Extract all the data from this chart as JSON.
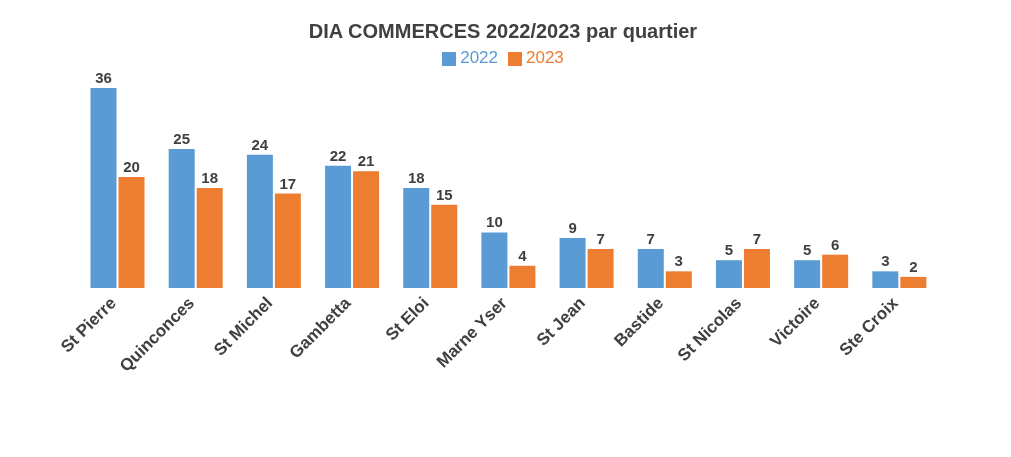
{
  "chart_data": {
    "type": "bar",
    "title": "DIA COMMERCES 2022/2023 par quartier",
    "categories": [
      "St Pierre",
      "Quinconces",
      "St Michel",
      "Gambetta",
      "St Eloi",
      "Marne Yser",
      "St Jean",
      "Bastide",
      "St Nicolas",
      "Victoire",
      "Ste Croix"
    ],
    "series": [
      {
        "name": "2022",
        "color": "#5b9bd5",
        "values": [
          36,
          25,
          24,
          22,
          18,
          10,
          9,
          7,
          5,
          5,
          3
        ]
      },
      {
        "name": "2023",
        "color": "#ed7d31",
        "values": [
          20,
          18,
          17,
          21,
          15,
          4,
          7,
          3,
          7,
          6,
          2
        ]
      }
    ],
    "data_labels": true,
    "legend": "top",
    "grid": false
  }
}
